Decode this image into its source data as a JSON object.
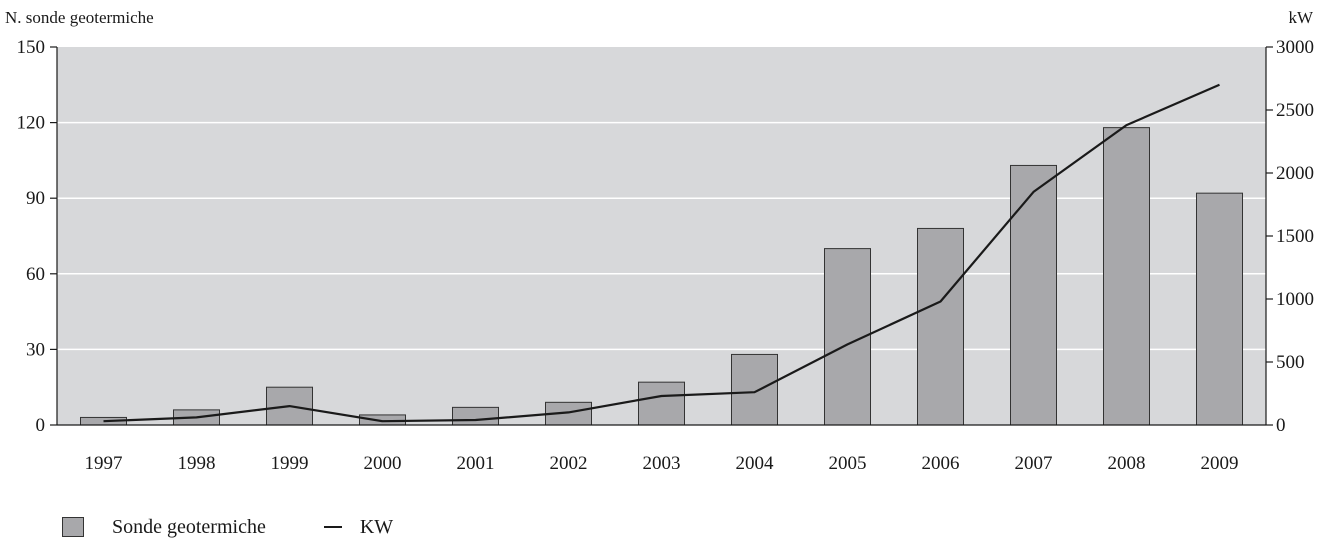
{
  "chart_data": {
    "type": "bar",
    "categories": [
      "1997",
      "1998",
      "1999",
      "2000",
      "2001",
      "2002",
      "2003",
      "2004",
      "2005",
      "2006",
      "2007",
      "2008",
      "2009"
    ],
    "series": [
      {
        "name": "Sonde geotermiche",
        "type": "bar",
        "axis": "left",
        "values": [
          3,
          6,
          15,
          4,
          7,
          9,
          17,
          28,
          70,
          78,
          103,
          118,
          92
        ]
      },
      {
        "name": "KW",
        "type": "line",
        "axis": "right",
        "values": [
          30,
          60,
          150,
          30,
          40,
          100,
          230,
          260,
          640,
          980,
          1850,
          2380,
          2700
        ]
      }
    ],
    "ylabel_left": "N. sonde geotermiche",
    "ylabel_right": "kW",
    "ylim_left": [
      0,
      150
    ],
    "ylim_right": [
      0,
      3000
    ],
    "yticks_left": [
      "0",
      "30",
      "60",
      "90",
      "120",
      "150"
    ],
    "yticks_right": [
      "0",
      "500",
      "1000",
      "1500",
      "2000",
      "2500",
      "3000"
    ],
    "grid": true,
    "legend_position": "bottom-left",
    "colors": {
      "plot_bg": "#d7d8da",
      "bar_fill": "#a8a8ab",
      "bar_stroke": "#333333",
      "line": "#1a1a1a",
      "grid": "#ffffff"
    }
  },
  "legend": {
    "bar_label": "Sonde geotermiche",
    "line_label": "KW"
  }
}
